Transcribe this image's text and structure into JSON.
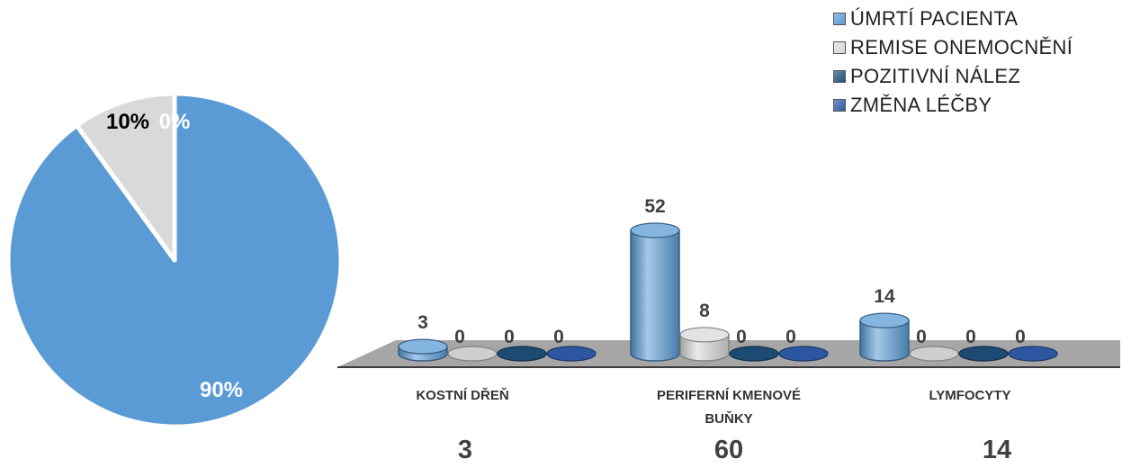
{
  "chart_data": [
    {
      "type": "pie",
      "slices": [
        {
          "label": "ÚMRTÍ PACIENTA",
          "value": 90,
          "display": "90%",
          "color": "#5b9bd5"
        },
        {
          "label": "REMISE ONEMOCNĚNÍ",
          "value": 10,
          "display": "10%",
          "color": "#d9d9d9"
        },
        {
          "label": "POZITIVNÍ NÁLEZ",
          "value": 0,
          "display": "0%",
          "color": "#1f4e79"
        },
        {
          "label": "ZMĚNA LÉČBY",
          "value": 0,
          "display": "0%",
          "color": "#2e5aa8"
        }
      ]
    },
    {
      "type": "bar",
      "style": "3d-cylinder",
      "categories": [
        "KOSTNÍ DŘEŇ",
        "PERIFERNÍ KMENOVÉ BUŇKY",
        "LYMFOCYTY"
      ],
      "category_label_lines": [
        [
          "KOSTNÍ DŘEŇ"
        ],
        [
          "PERIFERNÍ KMENOVÉ",
          "BUŇKY"
        ],
        [
          "LYMFOCYTY"
        ]
      ],
      "totals": [
        "3",
        "60",
        "14"
      ],
      "series": [
        {
          "name": "ÚMRTÍ PACIENTA",
          "values": [
            3,
            52,
            14
          ],
          "color": "#5b9bd5"
        },
        {
          "name": "REMISE ONEMOCNĚNÍ",
          "values": [
            0,
            8,
            0
          ],
          "color": "#d9d9d9"
        },
        {
          "name": "POZITIVNÍ NÁLEZ",
          "values": [
            0,
            0,
            0
          ],
          "color": "#1f4e79"
        },
        {
          "name": "ZMĚNA LÉČBY",
          "values": [
            0,
            0,
            0
          ],
          "color": "#2e5aa8"
        }
      ],
      "ylim": [
        0,
        52
      ],
      "legend_position": "top-right",
      "grid": false
    }
  ],
  "legend": {
    "items": [
      {
        "label": "ÚMRTÍ PACIENTA",
        "color": "#5b9bd5"
      },
      {
        "label": "REMISE ONEMOCNĚNÍ",
        "color": "#d9d9d9"
      },
      {
        "label": "POZITIVNÍ NÁLEZ",
        "color": "#1f4e79"
      },
      {
        "label": "ZMĚNA LÉČBY",
        "color": "#2e5aa8"
      }
    ]
  }
}
